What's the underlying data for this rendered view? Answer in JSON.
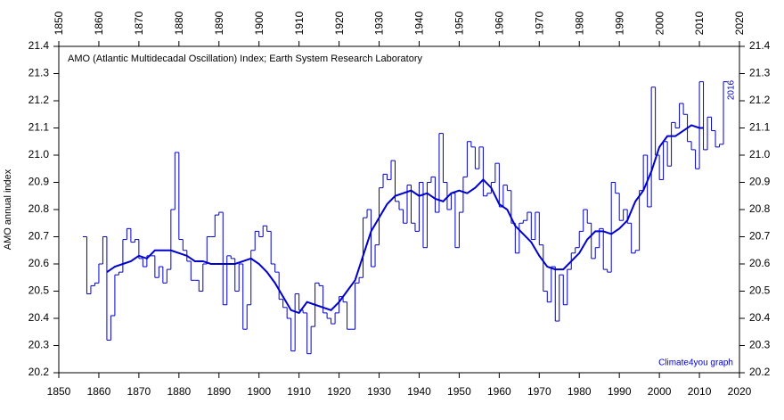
{
  "chart_data": {
    "type": "line",
    "title": "AMO (Atlantic Multidecadal Oscillation) Index; Earth System Research Laboratory",
    "y_label": "AMO annual index",
    "annotations": [
      "2016",
      "Climate4you graph"
    ],
    "xlim": [
      1850,
      2020
    ],
    "xticks": [
      1850,
      1860,
      1870,
      1880,
      1890,
      1900,
      1910,
      1920,
      1930,
      1940,
      1950,
      1960,
      1970,
      1980,
      1990,
      2000,
      2010,
      2020
    ],
    "ylim": [
      20.2,
      21.4
    ],
    "yticks": [
      20.2,
      20.3,
      20.4,
      20.5,
      20.6,
      20.7,
      20.8,
      20.9,
      {
        "value": 21,
        "label": "21.0"
      },
      21.1,
      21.2,
      21.3,
      21.4
    ],
    "series": [
      {
        "style": "step",
        "color": "#0000cc",
        "x": [
          1856,
          1857,
          1858,
          1859,
          1860,
          1861,
          1862,
          1863,
          1864,
          1865,
          1866,
          1867,
          1868,
          1869,
          1870,
          1871,
          1872,
          1873,
          1874,
          1875,
          1876,
          1877,
          1878,
          1879,
          1880,
          1881,
          1882,
          1883,
          1884,
          1885,
          1886,
          1887,
          1888,
          1889,
          1890,
          1891,
          1892,
          1893,
          1894,
          1895,
          1896,
          1897,
          1898,
          1899,
          1900,
          1901,
          1902,
          1903,
          1904,
          1905,
          1906,
          1907,
          1908,
          1909,
          1910,
          1911,
          1912,
          1913,
          1914,
          1915,
          1916,
          1917,
          1918,
          1919,
          1920,
          1921,
          1922,
          1923,
          1924,
          1925,
          1926,
          1927,
          1928,
          1929,
          1930,
          1931,
          1932,
          1933,
          1934,
          1935,
          1936,
          1937,
          1938,
          1939,
          1940,
          1941,
          1942,
          1943,
          1944,
          1945,
          1946,
          1947,
          1948,
          1949,
          1950,
          1951,
          1952,
          1953,
          1954,
          1955,
          1956,
          1957,
          1958,
          1959,
          1960,
          1961,
          1962,
          1963,
          1964,
          1965,
          1966,
          1967,
          1968,
          1969,
          1970,
          1971,
          1972,
          1973,
          1974,
          1975,
          1976,
          1977,
          1978,
          1979,
          1980,
          1981,
          1982,
          1983,
          1984,
          1985,
          1986,
          1987,
          1988,
          1989,
          1990,
          1991,
          1992,
          1993,
          1994,
          1995,
          1996,
          1997,
          1998,
          1999,
          2000,
          2001,
          2002,
          2003,
          2004,
          2005,
          2006,
          2007,
          2008,
          2009,
          2010,
          2011,
          2012,
          2013,
          2014,
          2015,
          2016
        ],
        "values": [
          20.7,
          20.49,
          20.52,
          20.53,
          20.6,
          20.7,
          20.32,
          20.41,
          20.56,
          20.57,
          20.69,
          20.73,
          20.68,
          20.69,
          20.62,
          20.59,
          20.63,
          20.63,
          20.55,
          20.59,
          20.53,
          20.58,
          20.8,
          21.01,
          20.69,
          20.65,
          20.61,
          20.54,
          20.54,
          20.5,
          20.6,
          20.7,
          20.7,
          20.78,
          20.79,
          20.45,
          20.63,
          20.62,
          20.5,
          20.6,
          20.36,
          20.45,
          20.65,
          20.72,
          20.7,
          20.74,
          20.72,
          20.6,
          20.57,
          20.47,
          20.44,
          20.4,
          20.28,
          20.49,
          20.43,
          20.42,
          20.27,
          20.37,
          20.53,
          20.52,
          20.42,
          20.4,
          20.38,
          20.42,
          20.48,
          20.46,
          20.36,
          20.36,
          20.53,
          20.55,
          20.77,
          20.8,
          20.59,
          20.67,
          20.88,
          20.93,
          20.91,
          20.98,
          20.83,
          20.8,
          20.75,
          20.89,
          20.75,
          20.72,
          20.9,
          20.66,
          20.9,
          20.92,
          20.79,
          21.08,
          20.9,
          20.8,
          20.86,
          20.66,
          20.79,
          20.92,
          21.05,
          21.03,
          20.95,
          21.03,
          20.85,
          20.86,
          20.9,
          20.97,
          20.81,
          20.89,
          20.87,
          20.75,
          20.64,
          20.75,
          20.76,
          20.79,
          20.69,
          20.79,
          20.67,
          20.5,
          20.46,
          20.59,
          20.39,
          20.56,
          20.45,
          20.58,
          20.64,
          20.66,
          20.72,
          20.8,
          20.75,
          20.62,
          20.66,
          20.73,
          20.58,
          20.57,
          20.9,
          20.86,
          20.76,
          20.8,
          20.75,
          20.64,
          20.65,
          20.87,
          21.0,
          20.81,
          21.25,
          21.0,
          20.91,
          21.05,
          20.96,
          21.12,
          21.1,
          21.19,
          21.15,
          21.05,
          21.02,
          20.95,
          21.27,
          21.02,
          21.14,
          21.09,
          21.03,
          21.04,
          21.27
        ]
      },
      {
        "style": "smooth",
        "color": "#0000cc",
        "x": [
          1862,
          1864,
          1866,
          1868,
          1870,
          1872,
          1874,
          1876,
          1878,
          1880,
          1882,
          1884,
          1886,
          1888,
          1890,
          1892,
          1894,
          1896,
          1898,
          1900,
          1902,
          1904,
          1906,
          1908,
          1910,
          1912,
          1914,
          1916,
          1918,
          1920,
          1922,
          1924,
          1926,
          1928,
          1930,
          1932,
          1934,
          1936,
          1938,
          1940,
          1942,
          1944,
          1946,
          1948,
          1950,
          1952,
          1954,
          1956,
          1958,
          1960,
          1962,
          1964,
          1966,
          1968,
          1970,
          1972,
          1974,
          1976,
          1978,
          1980,
          1982,
          1984,
          1986,
          1988,
          1990,
          1992,
          1994,
          1996,
          1998,
          2000,
          2002,
          2004,
          2006,
          2008,
          2010,
          2011
        ],
        "values": [
          20.57,
          20.59,
          20.6,
          20.61,
          20.63,
          20.62,
          20.65,
          20.65,
          20.65,
          20.64,
          20.63,
          20.61,
          20.61,
          20.6,
          20.6,
          20.6,
          20.6,
          20.61,
          20.62,
          20.6,
          20.57,
          20.53,
          20.48,
          20.43,
          20.42,
          20.46,
          20.45,
          20.44,
          20.43,
          20.46,
          20.5,
          20.54,
          20.63,
          20.72,
          20.77,
          20.82,
          20.85,
          20.86,
          20.87,
          20.85,
          20.86,
          20.84,
          20.83,
          20.86,
          20.87,
          20.86,
          20.88,
          20.91,
          20.88,
          20.82,
          20.8,
          20.74,
          20.71,
          20.68,
          20.63,
          20.59,
          20.58,
          20.58,
          20.61,
          20.64,
          20.69,
          20.72,
          20.72,
          20.71,
          20.73,
          20.76,
          20.83,
          20.87,
          20.94,
          21.03,
          21.07,
          21.07,
          21.09,
          21.11,
          21.1,
          21.1
        ]
      }
    ]
  }
}
